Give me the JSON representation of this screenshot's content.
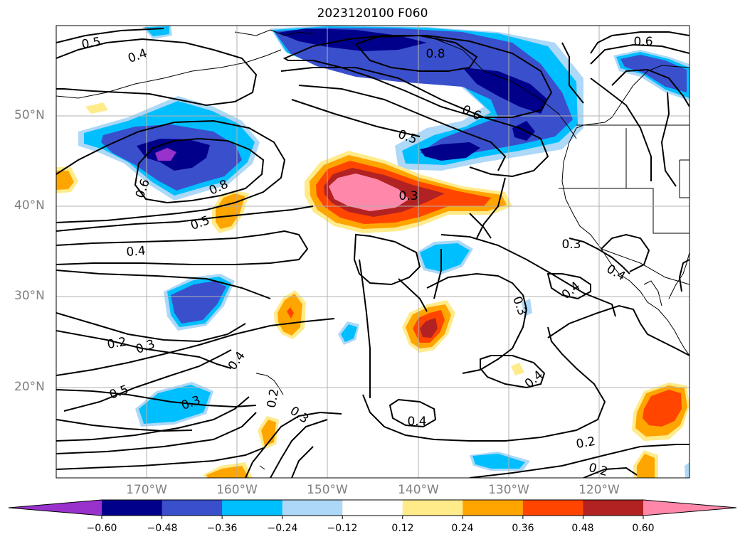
{
  "title": "2023120100 F060",
  "latitude_labels": [
    "50°N",
    "40°N",
    "30°N",
    "20°N"
  ],
  "longitude_labels": [
    "170°W",
    "160°W",
    "150°W",
    "140°W",
    "130°W",
    "120°W"
  ],
  "colorbar": {
    "ticks": [
      "−0.60",
      "−0.48",
      "−0.36",
      "−0.24",
      "−0.12",
      "0.12",
      "0.24",
      "0.36",
      "0.48",
      "0.60"
    ],
    "colors": [
      "#9932cc",
      "#00008b",
      "#3a4fcc",
      "#00bfff",
      "#add8f7",
      "#ffffff",
      "#ffeb8a",
      "#ffa500",
      "#ff4500",
      "#b22222",
      "#ff88aa"
    ]
  },
  "contour_labels": [
    {
      "text": "0.5",
      "rot": -10
    },
    {
      "text": "0.4",
      "rot": -20
    },
    {
      "text": "0.8",
      "rot": 0
    },
    {
      "text": "0.6",
      "rot": 0
    },
    {
      "text": "0.6",
      "rot": 25
    },
    {
      "text": "0.5",
      "rot": 20
    },
    {
      "text": "0.6",
      "rot": -70
    },
    {
      "text": "0.8",
      "rot": -25
    },
    {
      "text": "0.5",
      "rot": -20
    },
    {
      "text": "0.3",
      "rot": 0
    },
    {
      "text": "0.4",
      "rot": -5
    },
    {
      "text": "0.3",
      "rot": 0
    },
    {
      "text": "0.4",
      "rot": 30
    },
    {
      "text": "0.4",
      "rot": -40
    },
    {
      "text": "0.3",
      "rot": 70
    },
    {
      "text": "0.2",
      "rot": -10
    },
    {
      "text": "0.3",
      "rot": -20
    },
    {
      "text": "0.4",
      "rot": -55
    },
    {
      "text": "0.5",
      "rot": -20
    },
    {
      "text": "0.3",
      "rot": -20
    },
    {
      "text": "0.2",
      "rot": -80
    },
    {
      "text": "0.3",
      "rot": 35
    },
    {
      "text": "0.4",
      "rot": 0
    },
    {
      "text": "0.4",
      "rot": -40
    },
    {
      "text": "0.2",
      "rot": -10
    },
    {
      "text": "0.2",
      "rot": 15
    }
  ]
}
